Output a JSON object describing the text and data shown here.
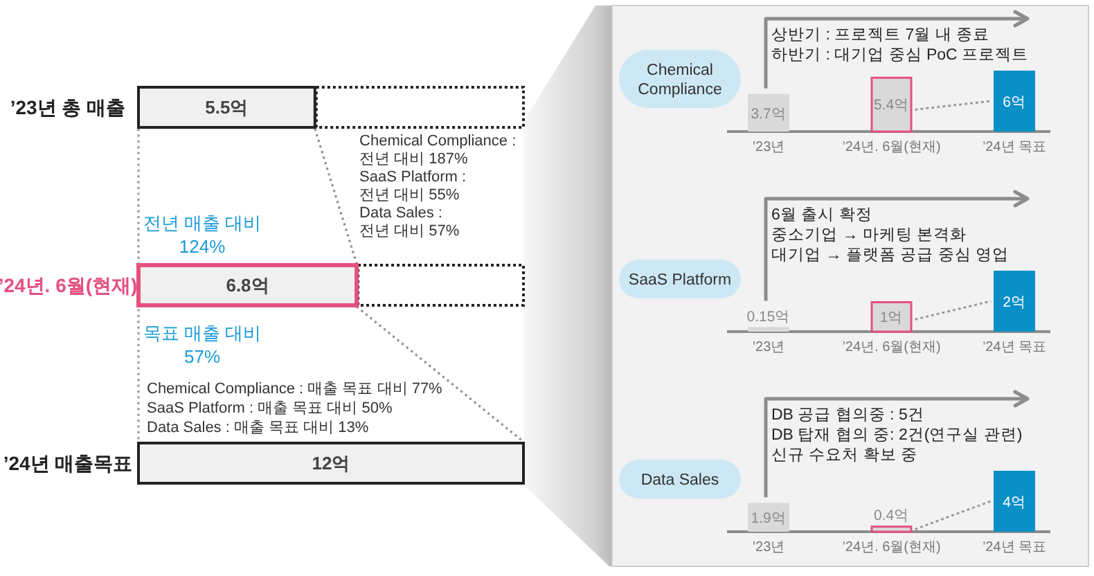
{
  "chart_data": [
    {
      "type": "bar",
      "orientation": "horizontal",
      "categories": [
        "’23년 총 매출",
        "’24년. 6월(현재)",
        "’24년 매출목표"
      ],
      "values": [
        5.5,
        6.8,
        12
      ],
      "value_labels": [
        "5.5억",
        "6.8억",
        "12억"
      ],
      "colors": [
        "#f0f0f0",
        "#f0f0f0",
        "#f0f0f0"
      ],
      "annotations": [
        "전년 매출 대비",
        "124%",
        "Chemical Compliance : 전년 대비 187%",
        "SaaS Platform : 전년 대비 55%",
        "Data Sales : 전년 대비 57%",
        "목표 매출 대비",
        "57%",
        "Chemical Compliance : 매출 목표 대비 77%",
        "SaaS Platform : 매출 목표 대비 50%",
        "Data Sales : 매출 목표 대비 13%"
      ]
    },
    {
      "type": "bar",
      "title": "Chemical Compliance",
      "categories": [
        "’23년",
        "’24년. 6월(현재)",
        "’24년 목표"
      ],
      "values": [
        3.7,
        5.4,
        6
      ],
      "value_labels": [
        "3.7억",
        "5.4억",
        "6억"
      ],
      "colors": [
        "#d9d9d9",
        "#d9d9d9",
        "#0a8fc7"
      ],
      "annotations": [
        "상반기 : 프로젝트 7월 내 종료",
        "하반기 : 대기업 중심 PoC 프로젝트"
      ]
    },
    {
      "type": "bar",
      "title": "SaaS Platform",
      "categories": [
        "’23년",
        "’24년. 6월(현재)",
        "’24년 목표"
      ],
      "values": [
        0.15,
        1,
        2
      ],
      "value_labels": [
        "0.15억",
        "1억",
        "2억"
      ],
      "colors": [
        "#d9d9d9",
        "#d9d9d9",
        "#0a8fc7"
      ],
      "annotations": [
        "6월 출시 확정",
        "중소기업 → 마케팅 본격화",
        "대기업 → 플랫폼 공급 중심 영업"
      ]
    },
    {
      "type": "bar",
      "title": "Data Sales",
      "categories": [
        "’23년",
        "’24년. 6월(현재)",
        "’24년 목표"
      ],
      "values": [
        1.9,
        0.4,
        4
      ],
      "value_labels": [
        "1.9억",
        "0.4억",
        "4억"
      ],
      "colors": [
        "#d9d9d9",
        "#d9d9d9",
        "#0a8fc7"
      ],
      "annotations": [
        "DB 공급 협의중 : 5건",
        "DB 탑재 협의 중: 2건(연구실 관련)",
        "신규 수요처 확보 중"
      ]
    }
  ]
}
